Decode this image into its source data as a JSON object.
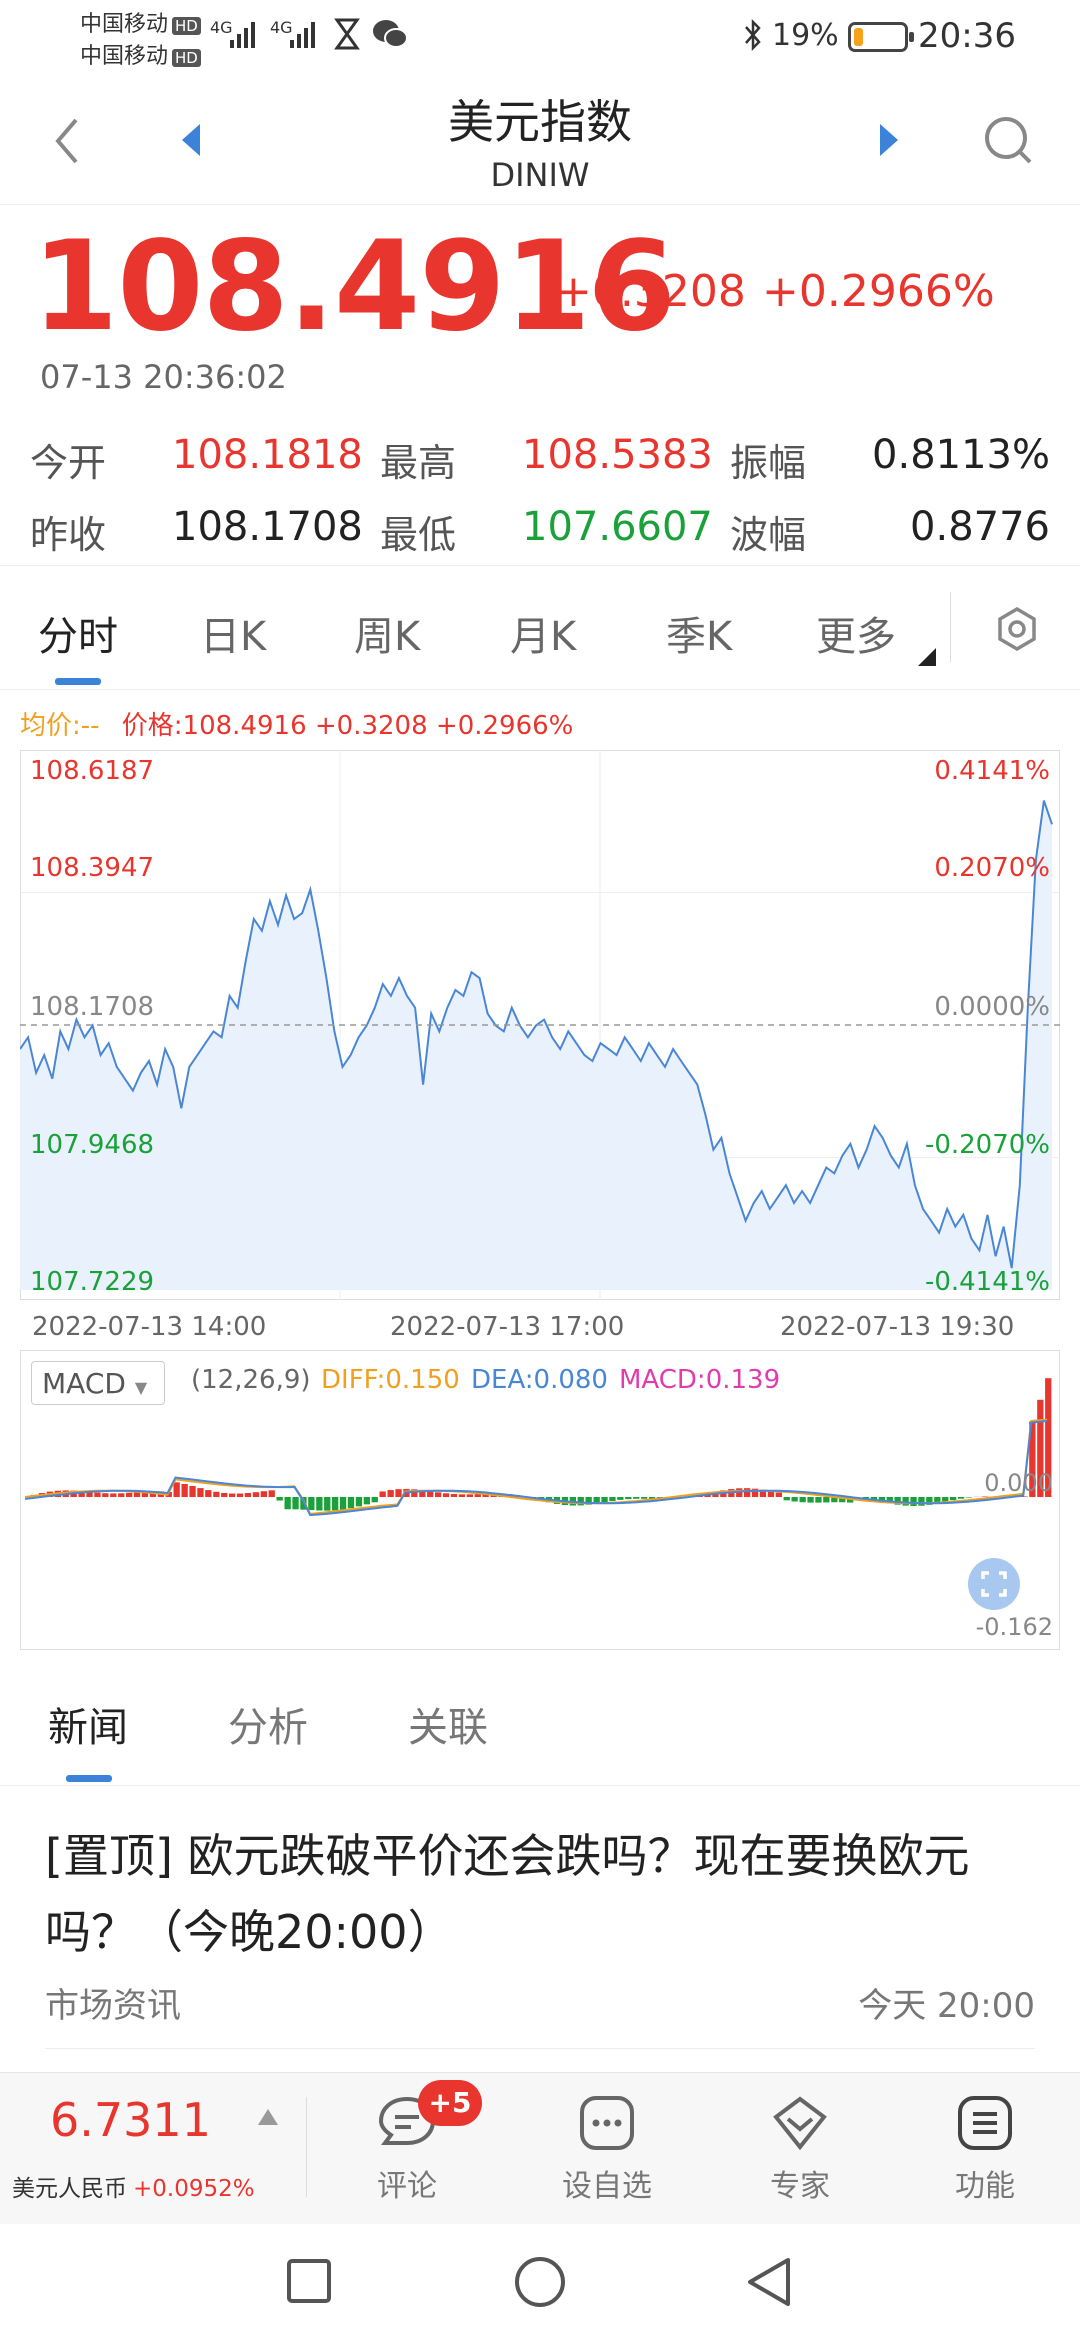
{
  "status_bar": {
    "carrier1": "中国移动",
    "carrier2": "中国移动",
    "hd": "HD",
    "network": "4G",
    "battery_text": "19%",
    "battery_level": 0.19,
    "time": "20:36"
  },
  "header": {
    "title": "美元指数",
    "subtitle": "DINIW"
  },
  "quote": {
    "price": "108.4916",
    "change": "+0.3208",
    "change_pct": "+0.2966%",
    "time": "07-13 20:36:02"
  },
  "stats": {
    "open_label": "今开",
    "open": "108.1818",
    "high_label": "最高",
    "high": "108.5383",
    "amplitude_label": "振幅",
    "amplitude": "0.8113%",
    "prev_close_label": "昨收",
    "prev_close": "108.1708",
    "low_label": "最低",
    "low": "107.6607",
    "volatility_label": "波幅",
    "volatility": "0.8776"
  },
  "chart_tabs": [
    "分时",
    "日K",
    "周K",
    "月K",
    "季K",
    "更多"
  ],
  "legend": {
    "avg": "均价:--",
    "price": "价格:108.4916 +0.3208 +0.2966%"
  },
  "chart_data": {
    "type": "line",
    "x_ticks": [
      "2022-07-13 14:00",
      "2022-07-13 17:00",
      "2022-07-13 19:30"
    ],
    "y_left_ticks": [
      "108.6187",
      "108.3947",
      "108.1708",
      "107.9468",
      "107.7229"
    ],
    "y_right_ticks": [
      "0.4141%",
      "0.2070%",
      "0.0000%",
      "-0.2070%",
      "-0.4141%"
    ],
    "ylim": [
      107.7229,
      108.6187
    ],
    "baseline": 108.1708,
    "y": [
      108.13,
      108.15,
      108.09,
      108.12,
      108.08,
      108.16,
      108.13,
      108.18,
      108.15,
      108.17,
      108.12,
      108.14,
      108.1,
      108.08,
      108.06,
      108.09,
      108.11,
      108.07,
      108.13,
      108.1,
      108.03,
      108.1,
      108.12,
      108.14,
      108.16,
      108.15,
      108.22,
      108.2,
      108.28,
      108.35,
      108.33,
      108.38,
      108.34,
      108.39,
      108.35,
      108.36,
      108.4,
      108.33,
      108.25,
      108.16,
      108.1,
      108.12,
      108.15,
      108.17,
      108.2,
      108.24,
      108.22,
      108.25,
      108.22,
      108.2,
      108.07,
      108.19,
      108.16,
      108.2,
      108.23,
      108.22,
      108.26,
      108.25,
      108.19,
      108.17,
      108.16,
      108.2,
      108.17,
      108.15,
      108.17,
      108.18,
      108.15,
      108.13,
      108.16,
      108.14,
      108.12,
      108.11,
      108.14,
      108.13,
      108.12,
      108.15,
      108.13,
      108.11,
      108.14,
      108.12,
      108.1,
      108.13,
      108.11,
      108.09,
      108.07,
      108.02,
      107.96,
      107.98,
      107.92,
      107.88,
      107.84,
      107.87,
      107.89,
      107.86,
      107.88,
      107.9,
      107.87,
      107.89,
      107.87,
      107.9,
      107.93,
      107.92,
      107.95,
      107.97,
      107.93,
      107.96,
      108.0,
      107.98,
      107.95,
      107.93,
      107.97,
      107.9,
      107.86,
      107.84,
      107.82,
      107.86,
      107.83,
      107.85,
      107.81,
      107.79,
      107.85,
      107.78,
      107.83,
      107.76,
      107.9,
      108.2,
      108.45,
      108.55,
      108.51
    ],
    "macd": {
      "params": "(12,26,9)",
      "diff": "DIFF:0.150",
      "dea": "DEA:0.080",
      "macd": "MACD:0.139",
      "zero_label": "0.000",
      "min_label": "-0.162",
      "ylim": [
        -0.162,
        0.2
      ]
    }
  },
  "colors": {
    "up": "#e8352e",
    "down": "#1aa13a",
    "line": "#4a86d6",
    "diff": "#f0a020",
    "dea": "#4a86d6",
    "macd": "#e03cae"
  },
  "news_tabs": [
    "新闻",
    "分析",
    "关联"
  ],
  "news": {
    "title": "[置顶] 欧元跌破平价还会跌吗？现在要换欧元吗？（今晚20:00）",
    "source": "市场资讯",
    "time": "今天 20:00"
  },
  "bottom": {
    "rate_value": "6.7311",
    "rate_name": "美元人民币",
    "rate_change": "+0.0952%",
    "badge": "+5",
    "comment": "评论",
    "watchlist": "设自选",
    "expert": "专家",
    "function": "功能"
  }
}
